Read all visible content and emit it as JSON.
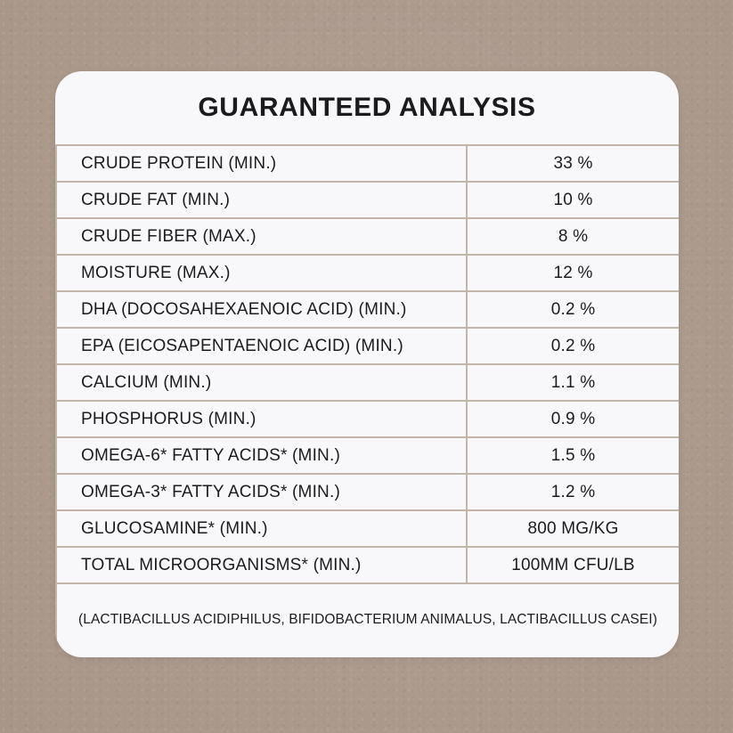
{
  "colors": {
    "background": "#ae9c8e",
    "card": "#f8f8fa",
    "grid_line": "#c2b6ab",
    "text": "#1c1c1e"
  },
  "header": {
    "title": "GUARANTEED ANALYSIS"
  },
  "table": {
    "rows": [
      {
        "label": "CRUDE PROTEIN (MIN.)",
        "value": "33 %"
      },
      {
        "label": "CRUDE FAT (MIN.)",
        "value": "10 %"
      },
      {
        "label": "CRUDE FIBER (MAX.)",
        "value": "8 %"
      },
      {
        "label": "MOISTURE (MAX.)",
        "value": "12 %"
      },
      {
        "label": "DHA (DOCOSAHEXAENOIC ACID) (MIN.)",
        "value": "0.2 %"
      },
      {
        "label": "EPA (EICOSAPENTAENOIC ACID) (MIN.)",
        "value": "0.2 %"
      },
      {
        "label": "CALCIUM (MIN.)",
        "value": "1.1 %"
      },
      {
        "label": "PHOSPHORUS (MIN.)",
        "value": "0.9 %"
      },
      {
        "label": "OMEGA-6* FATTY ACIDS* (MIN.)",
        "value": "1.5 %"
      },
      {
        "label": "OMEGA-3* FATTY ACIDS* (MIN.)",
        "value": "1.2 %"
      },
      {
        "label": "GLUCOSAMINE* (MIN.)",
        "value": "800 MG/KG"
      },
      {
        "label": "TOTAL MICROORGANISMS* (MIN.)",
        "value": "100MM CFU/LB"
      }
    ]
  },
  "footer": {
    "note": "(LACTIBACILLUS ACIDIPHILUS, BIFIDOBACTERIUM ANIMALUS, LACTIBACILLUS CASEI)"
  }
}
